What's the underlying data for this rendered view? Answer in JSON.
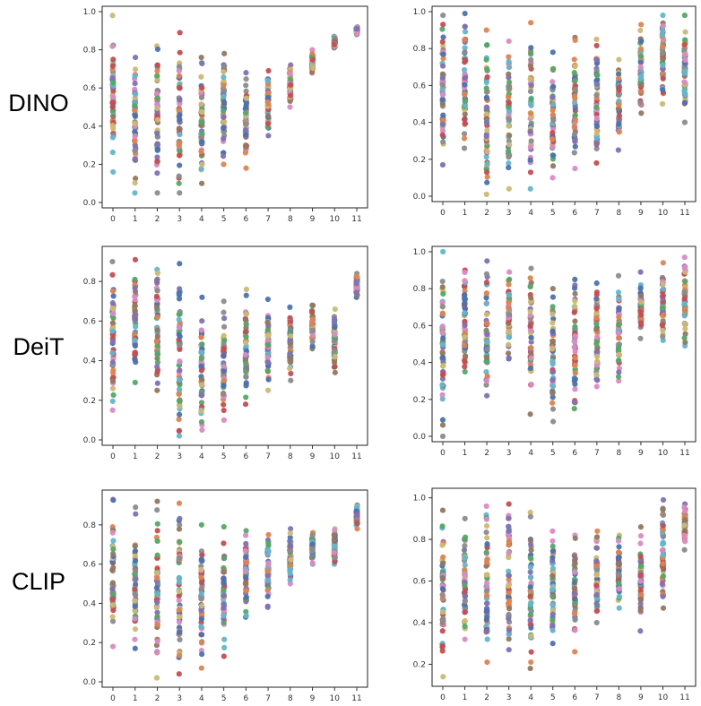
{
  "row_labels": [
    "DINO",
    "DeiT",
    "CLIP"
  ],
  "palette": [
    "#4c72b0",
    "#dd8452",
    "#55a868",
    "#c44e52",
    "#8172b3",
    "#937860",
    "#da8bc3",
    "#8c8c8c",
    "#ccb974",
    "#64b5cd"
  ],
  "chart_data": [
    {
      "type": "scatter",
      "row_label": "DINO",
      "x": [
        0,
        1,
        2,
        3,
        4,
        5,
        6,
        7,
        8,
        9,
        10,
        11
      ],
      "ylim": [
        0,
        1.0
      ],
      "yticks": [
        0.0,
        0.2,
        0.4,
        0.6,
        0.8,
        1.0
      ],
      "ytick_labels": [
        "0.0",
        "0.2",
        "0.4",
        "0.6",
        "0.8",
        "1.0"
      ],
      "xtick_labels": [
        "0",
        "1",
        "2",
        "3",
        "4",
        "5",
        "6",
        "7",
        "8",
        "9",
        "10",
        "11"
      ],
      "layers": [
        {
          "min": 0.16,
          "max": 0.98
        },
        {
          "min": 0.05,
          "max": 0.76
        },
        {
          "min": 0.05,
          "max": 0.82
        },
        {
          "min": 0.05,
          "max": 0.89
        },
        {
          "min": 0.1,
          "max": 0.76
        },
        {
          "min": 0.2,
          "max": 0.78
        },
        {
          "min": 0.18,
          "max": 0.68
        },
        {
          "min": 0.35,
          "max": 0.69
        },
        {
          "min": 0.5,
          "max": 0.72
        },
        {
          "min": 0.68,
          "max": 0.8
        },
        {
          "min": 0.81,
          "max": 0.87
        },
        {
          "min": 0.88,
          "max": 0.92
        }
      ]
    },
    {
      "type": "scatter",
      "row_label": "DINO",
      "x": [
        0,
        1,
        2,
        3,
        4,
        5,
        6,
        7,
        8,
        9,
        10,
        11
      ],
      "ylim": [
        0,
        1.0
      ],
      "yticks": [
        0.0,
        0.2,
        0.4,
        0.6,
        0.8,
        1.0
      ],
      "ytick_labels": [
        "0.0",
        "0.2",
        "0.4",
        "0.6",
        "0.8",
        "1.0"
      ],
      "xtick_labels": [
        "0",
        "1",
        "2",
        "3",
        "4",
        "5",
        "6",
        "7",
        "8",
        "9",
        "10",
        "11"
      ],
      "layers": [
        {
          "min": 0.17,
          "max": 0.98
        },
        {
          "min": 0.26,
          "max": 0.99
        },
        {
          "min": 0.01,
          "max": 0.9
        },
        {
          "min": 0.04,
          "max": 0.84
        },
        {
          "min": 0.04,
          "max": 0.94
        },
        {
          "min": 0.1,
          "max": 0.78
        },
        {
          "min": 0.15,
          "max": 0.86
        },
        {
          "min": 0.18,
          "max": 0.85
        },
        {
          "min": 0.25,
          "max": 0.74
        },
        {
          "min": 0.45,
          "max": 0.93
        },
        {
          "min": 0.5,
          "max": 0.98
        },
        {
          "min": 0.4,
          "max": 0.98
        }
      ]
    },
    {
      "type": "scatter",
      "row_label": "DeiT",
      "x": [
        0,
        1,
        2,
        3,
        4,
        5,
        6,
        7,
        8,
        9,
        10,
        11
      ],
      "ylim": [
        0,
        0.95
      ],
      "yticks": [
        0.0,
        0.2,
        0.4,
        0.6,
        0.8
      ],
      "ytick_labels": [
        "0.0",
        "0.2",
        "0.4",
        "0.6",
        "0.8"
      ],
      "xtick_labels": [
        "0",
        "1",
        "2",
        "3",
        "4",
        "5",
        "6",
        "7",
        "8",
        "9",
        "10",
        "11"
      ],
      "layers": [
        {
          "min": 0.15,
          "max": 0.9
        },
        {
          "min": 0.29,
          "max": 0.91
        },
        {
          "min": 0.25,
          "max": 0.86
        },
        {
          "min": 0.02,
          "max": 0.89
        },
        {
          "min": 0.05,
          "max": 0.72
        },
        {
          "min": 0.1,
          "max": 0.7
        },
        {
          "min": 0.18,
          "max": 0.76
        },
        {
          "min": 0.25,
          "max": 0.71
        },
        {
          "min": 0.3,
          "max": 0.67
        },
        {
          "min": 0.46,
          "max": 0.68
        },
        {
          "min": 0.34,
          "max": 0.66
        },
        {
          "min": 0.72,
          "max": 0.84
        }
      ]
    },
    {
      "type": "scatter",
      "row_label": "DeiT",
      "x": [
        0,
        1,
        2,
        3,
        4,
        5,
        6,
        7,
        8,
        9,
        10,
        11
      ],
      "ylim": [
        0,
        1.0
      ],
      "yticks": [
        0.0,
        0.2,
        0.4,
        0.6,
        0.8,
        1.0
      ],
      "ytick_labels": [
        "0.0",
        "0.2",
        "0.4",
        "0.6",
        "0.8",
        "1.0"
      ],
      "xtick_labels": [
        "0",
        "1",
        "2",
        "3",
        "4",
        "5",
        "6",
        "7",
        "8",
        "9",
        "10",
        "11"
      ],
      "layers": [
        {
          "min": 0.0,
          "max": 1.0
        },
        {
          "min": 0.35,
          "max": 0.9
        },
        {
          "min": 0.22,
          "max": 0.95
        },
        {
          "min": 0.42,
          "max": 0.89
        },
        {
          "min": 0.12,
          "max": 0.91
        },
        {
          "min": 0.08,
          "max": 0.8
        },
        {
          "min": 0.15,
          "max": 0.85
        },
        {
          "min": 0.27,
          "max": 0.83
        },
        {
          "min": 0.3,
          "max": 0.87
        },
        {
          "min": 0.53,
          "max": 0.89
        },
        {
          "min": 0.52,
          "max": 0.94
        },
        {
          "min": 0.49,
          "max": 0.97
        }
      ]
    },
    {
      "type": "scatter",
      "row_label": "CLIP",
      "x": [
        0,
        1,
        2,
        3,
        4,
        5,
        6,
        7,
        8,
        9,
        10,
        11
      ],
      "ylim": [
        0,
        0.95
      ],
      "yticks": [
        0.0,
        0.2,
        0.4,
        0.6,
        0.8
      ],
      "ytick_labels": [
        "0.0",
        "0.2",
        "0.4",
        "0.6",
        "0.8"
      ],
      "xtick_labels": [
        "0",
        "1",
        "2",
        "3",
        "4",
        "5",
        "6",
        "7",
        "8",
        "9",
        "10",
        "11"
      ],
      "layers": [
        {
          "min": 0.18,
          "max": 0.93
        },
        {
          "min": 0.17,
          "max": 0.89
        },
        {
          "min": 0.02,
          "max": 0.92
        },
        {
          "min": 0.04,
          "max": 0.91
        },
        {
          "min": 0.07,
          "max": 0.8
        },
        {
          "min": 0.13,
          "max": 0.79
        },
        {
          "min": 0.33,
          "max": 0.77
        },
        {
          "min": 0.38,
          "max": 0.75
        },
        {
          "min": 0.5,
          "max": 0.78
        },
        {
          "min": 0.6,
          "max": 0.76
        },
        {
          "min": 0.6,
          "max": 0.78
        },
        {
          "min": 0.78,
          "max": 0.9
        }
      ]
    },
    {
      "type": "scatter",
      "row_label": "CLIP",
      "x": [
        0,
        1,
        2,
        3,
        4,
        5,
        6,
        7,
        8,
        9,
        10,
        11
      ],
      "ylim": [
        0.12,
        1.02
      ],
      "yticks": [
        0.2,
        0.4,
        0.6,
        0.8,
        1.0
      ],
      "ytick_labels": [
        "0.2",
        "0.4",
        "0.6",
        "0.8",
        "1.0"
      ],
      "xtick_labels": [
        "0",
        "1",
        "2",
        "3",
        "4",
        "5",
        "6",
        "7",
        "8",
        "9",
        "10",
        "11"
      ],
      "layers": [
        {
          "min": 0.14,
          "max": 0.94
        },
        {
          "min": 0.32,
          "max": 0.9
        },
        {
          "min": 0.21,
          "max": 0.96
        },
        {
          "min": 0.27,
          "max": 0.97
        },
        {
          "min": 0.18,
          "max": 0.93
        },
        {
          "min": 0.3,
          "max": 0.84
        },
        {
          "min": 0.26,
          "max": 0.82
        },
        {
          "min": 0.4,
          "max": 0.84
        },
        {
          "min": 0.47,
          "max": 0.82
        },
        {
          "min": 0.36,
          "max": 0.86
        },
        {
          "min": 0.47,
          "max": 0.99
        },
        {
          "min": 0.75,
          "max": 0.97
        }
      ]
    }
  ]
}
